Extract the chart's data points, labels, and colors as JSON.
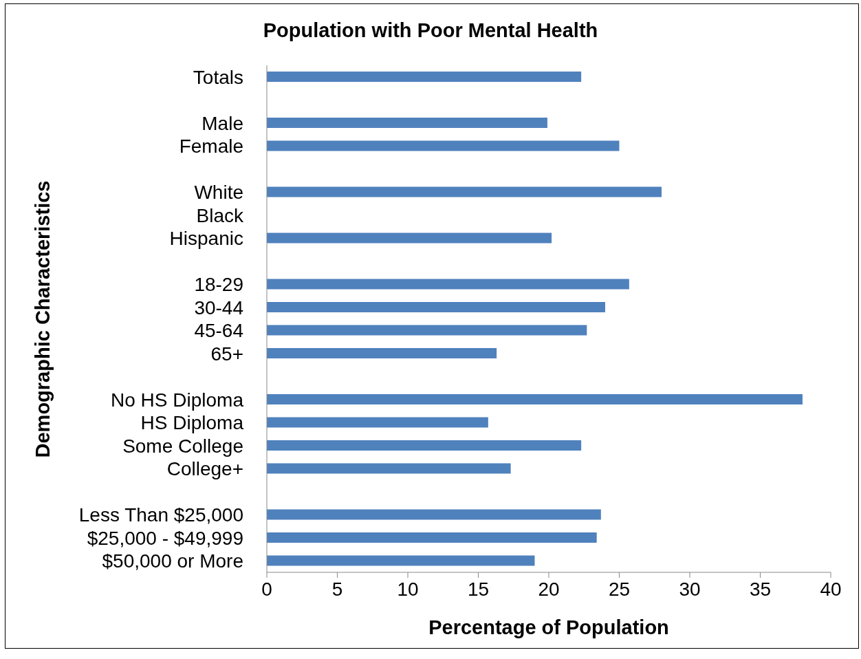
{
  "chart_data": {
    "type": "bar",
    "orientation": "horizontal",
    "title": "Population with Poor Mental Health",
    "xlabel": "Percentage of Population",
    "ylabel": "Demographic Characteristics",
    "categories": [
      "Totals",
      null,
      "Male",
      "Female",
      null,
      "White",
      "Black",
      "Hispanic",
      null,
      "18-29",
      "30-44",
      "45-64",
      "65+",
      null,
      "No HS Diploma",
      "HS Diploma",
      "Some College",
      "College+",
      null,
      "Less Than $25,000",
      "$25,000 - $49,999",
      "$50,000 or More"
    ],
    "values": [
      22.3,
      null,
      19.9,
      25.0,
      null,
      28.0,
      null,
      20.2,
      null,
      25.7,
      24.0,
      22.7,
      16.3,
      null,
      38.0,
      15.7,
      22.3,
      17.3,
      null,
      23.7,
      23.4,
      19.0
    ],
    "color": "#4f81bd",
    "xlim": [
      0,
      40
    ],
    "xticks": [
      0,
      5,
      10,
      15,
      20,
      25,
      30,
      35,
      40
    ],
    "grid": false,
    "legend": false
  }
}
